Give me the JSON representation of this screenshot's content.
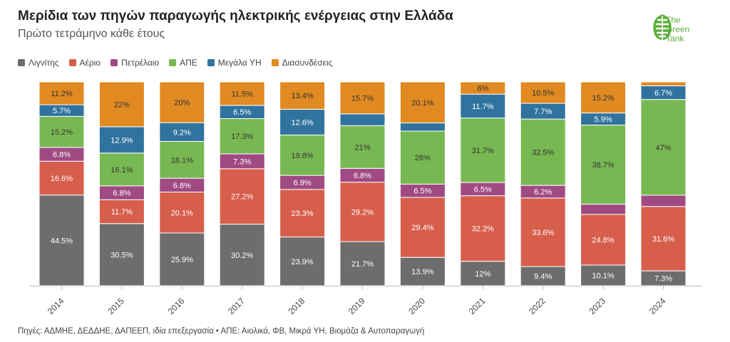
{
  "title": "Μερίδια των πηγών παραγωγής ηλεκτρικής ενέργειας στην Ελλάδα",
  "subtitle": "Πρώτο τετράμηνο κάθε έτους",
  "logo": {
    "line1": "The",
    "line2": "Green",
    "line3": "Tank"
  },
  "footnote": "Πηγές: ΑΔΜΗΕ, ΔΕΔΔΗΕ, ΔΑΠΕΕΠ, ιδία επεξεργασία • ΑΠΕ: Αιολικά, ΦΒ, Μικρά ΥΗ, Βιομάζα & Αυτοπαραγωγή",
  "chart_data": {
    "type": "bar",
    "stacked": true,
    "ylim": [
      0,
      100
    ],
    "categories": [
      "2014",
      "2015",
      "2016",
      "2017",
      "2018",
      "2019",
      "2020",
      "2021",
      "2022",
      "2023",
      "2024"
    ],
    "series": [
      {
        "name": "Λιγνίτης",
        "color": "#6d6d6d",
        "values": [
          44.5,
          30.5,
          25.9,
          30.2,
          23.9,
          21.7,
          13.9,
          12,
          9.4,
          10.1,
          7.3
        ]
      },
      {
        "name": "Αέριο",
        "color": "#d65e4b",
        "values": [
          16.6,
          11.7,
          20.1,
          27.2,
          23.3,
          29.2,
          29.4,
          32.2,
          33.6,
          24.8,
          31.6
        ]
      },
      {
        "name": "Πετρέλαιο",
        "color": "#a04a83",
        "values": [
          6.8,
          6.8,
          6.8,
          7.3,
          6.9,
          6.8,
          6.5,
          6.5,
          6.2,
          5,
          5.5
        ]
      },
      {
        "name": "ΑΠΕ",
        "color": "#78b852",
        "values": [
          15.2,
          16.1,
          18.1,
          17.3,
          19.8,
          21,
          26,
          31.7,
          32.5,
          38.7,
          47
        ]
      },
      {
        "name": "Μεγάλα ΥΗ",
        "color": "#31739f",
        "values": [
          5.7,
          12.9,
          9.2,
          6.5,
          12.6,
          5.8,
          4,
          11.7,
          7.7,
          5.9,
          6.7
        ]
      },
      {
        "name": "Διασυνδέσεις",
        "color": "#e08a21",
        "values": [
          11.2,
          22,
          20,
          11.5,
          13.4,
          15.7,
          20.1,
          6,
          10.5,
          15.2,
          1.9
        ]
      }
    ],
    "labels": [
      [
        "44.5%",
        "30.5%",
        "25.9%",
        "30.2%",
        "23.9%",
        "21.7%",
        "13.9%",
        "12%",
        "9.4%",
        "10.1%",
        "7.3%"
      ],
      [
        "16.6%",
        "11.7%",
        "20.1%",
        "27.2%",
        "23.3%",
        "29.2%",
        "29.4%",
        "32.2%",
        "33.6%",
        "24.8%",
        "31.6%"
      ],
      [
        "6.8%",
        "6.8%",
        "6.8%",
        "7.3%",
        "6.9%",
        "6.8%",
        "6.5%",
        "6.5%",
        "6.2%",
        "",
        ""
      ],
      [
        "15.2%",
        "16.1%",
        "18.1%",
        "17.3%",
        "19.8%",
        "21%",
        "26%",
        "31.7%",
        "32.5%",
        "38.7%",
        "47%"
      ],
      [
        "5.7%",
        "12.9%",
        "9.2%",
        "6.5%",
        "12.6%",
        "",
        "",
        "11.7%",
        "7.7%",
        "5.9%",
        "6.7%"
      ],
      [
        "11.2%",
        "22%",
        "20%",
        "11.5%",
        "13.4%",
        "15.7%",
        "20.1%",
        "6%",
        "10.5%",
        "15.2%",
        ""
      ]
    ]
  }
}
